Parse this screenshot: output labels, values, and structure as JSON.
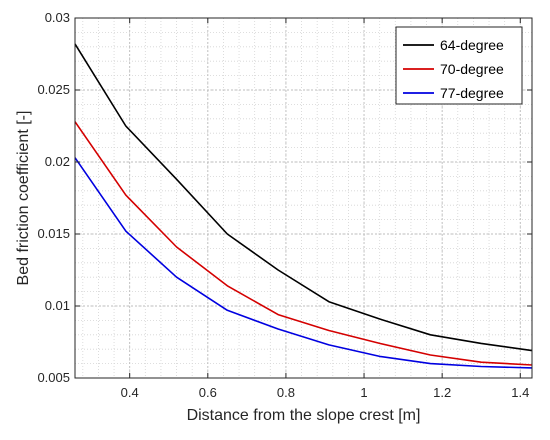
{
  "chart_data": {
    "type": "line",
    "xlabel": "Distance from the slope crest [m]",
    "ylabel": "Bed friction coefficient [-]",
    "xlim": [
      0.26,
      1.43
    ],
    "ylim": [
      0.005,
      0.03
    ],
    "x_ticks": [
      0.4,
      0.6,
      0.8,
      1,
      1.2,
      1.4
    ],
    "x_tick_labels": [
      "0.4",
      "0.6",
      "0.8",
      "1",
      "1.2",
      "1.4"
    ],
    "y_ticks": [
      0.005,
      0.01,
      0.015,
      0.02,
      0.025,
      0.03
    ],
    "y_tick_labels": [
      "0.005",
      "0.01",
      "0.015",
      "0.02",
      "0.025",
      "0.03"
    ],
    "grid": true,
    "minor_grid": true,
    "legend_position": "top-right",
    "x": [
      0.26,
      0.39,
      0.52,
      0.65,
      0.78,
      0.91,
      1.04,
      1.17,
      1.3,
      1.43
    ],
    "series": [
      {
        "name": "64-degree",
        "color": "#000000",
        "values": [
          0.0282,
          0.0225,
          0.0188,
          0.015,
          0.0125,
          0.0103,
          0.0091,
          0.008,
          0.0074,
          0.0069
        ]
      },
      {
        "name": "70-degree",
        "color": "#d40000",
        "values": [
          0.0228,
          0.0177,
          0.0141,
          0.0114,
          0.0094,
          0.0083,
          0.0074,
          0.0066,
          0.0061,
          0.0059
        ]
      },
      {
        "name": "77-degree",
        "color": "#0000e0",
        "values": [
          0.0203,
          0.0152,
          0.012,
          0.0097,
          0.0084,
          0.0073,
          0.0065,
          0.006,
          0.0058,
          0.0057
        ]
      }
    ]
  }
}
